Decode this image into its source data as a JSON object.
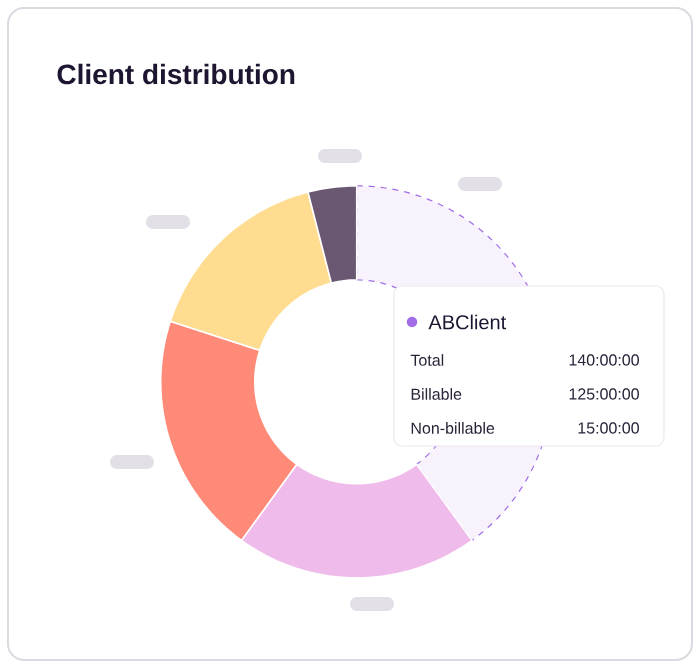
{
  "chart_data": {
    "type": "donut",
    "title": "Client distribution",
    "categories": [
      "ABClient",
      null,
      null,
      null,
      null
    ],
    "values": [
      40,
      20,
      20,
      16,
      4
    ],
    "colors": [
      "#f8f2fd",
      "#efbbea",
      "#ff8a78",
      "#ffdc90",
      "#6a5873"
    ],
    "annotations": [
      "Total",
      "140:00:00",
      "Billable",
      "125:00:00",
      "Non-billable",
      "15:00:00"
    ]
  }
}
